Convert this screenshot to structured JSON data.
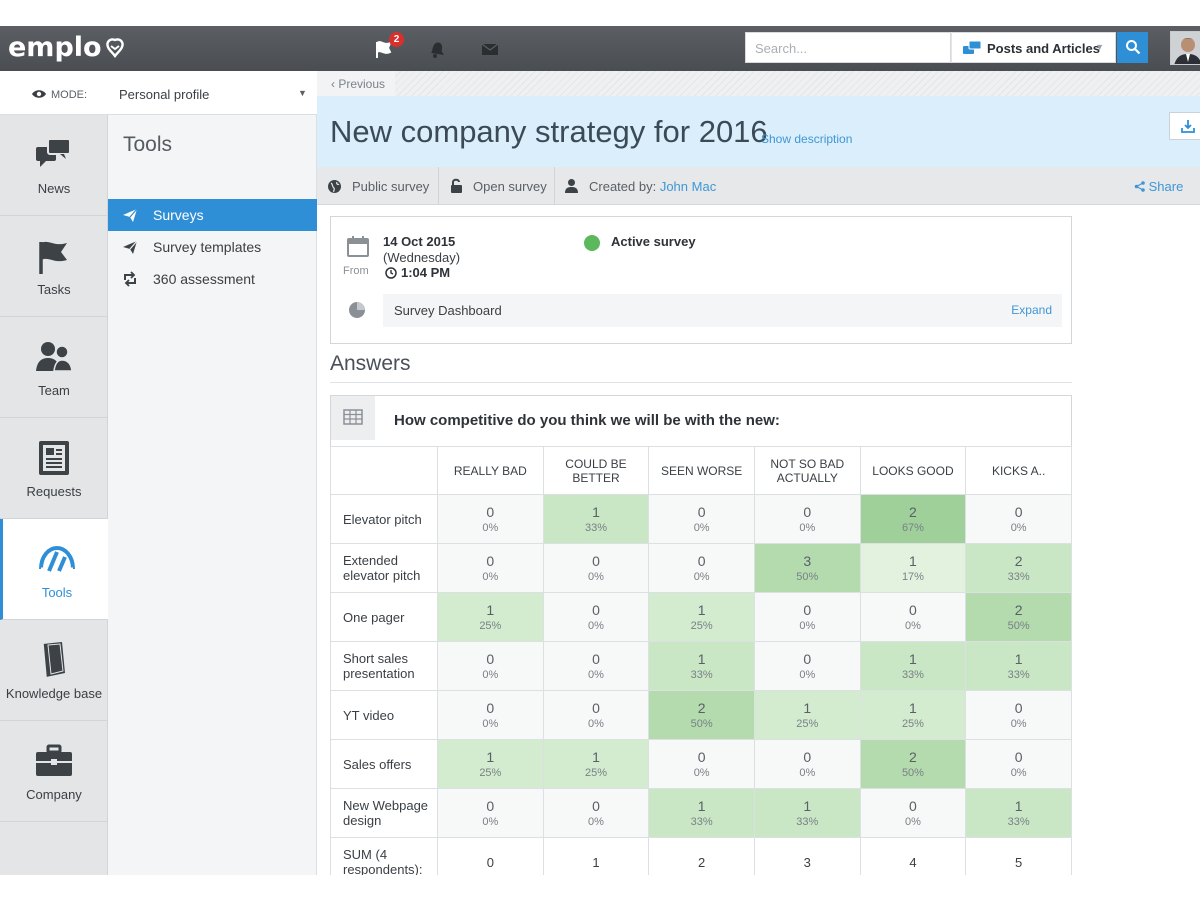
{
  "app": {
    "logo": "emplo"
  },
  "topbar": {
    "notification_count": "2",
    "search_placeholder": "Search...",
    "scope_label": "Posts and Articles"
  },
  "mode": {
    "label": "MODE:",
    "value": "Personal profile"
  },
  "rail": {
    "items": [
      {
        "label": "News",
        "icon": "news-icon"
      },
      {
        "label": "Tasks",
        "icon": "flag-icon"
      },
      {
        "label": "Team",
        "icon": "team-icon"
      },
      {
        "label": "Requests",
        "icon": "requests-icon"
      },
      {
        "label": "Tools",
        "icon": "gauge-icon"
      },
      {
        "label": "Knowledge base",
        "icon": "book-icon"
      },
      {
        "label": "Company",
        "icon": "briefcase-icon"
      }
    ]
  },
  "subnav": {
    "title": "Tools",
    "items": [
      {
        "label": "Surveys",
        "icon": "paper-plane-icon"
      },
      {
        "label": "Survey templates",
        "icon": "paper-plane-icon"
      },
      {
        "label": "360 assessment",
        "icon": "retweet-icon"
      }
    ]
  },
  "main": {
    "previous": "‹ Previous",
    "title": "New company strategy for 2016",
    "show_description": "Show description",
    "meta": {
      "visibility": "Public survey",
      "access": "Open survey",
      "created_by_label": "Created by:",
      "created_by_name": "John Mac",
      "share": "Share"
    },
    "info": {
      "date": "14 Oct 2015",
      "weekday": "(Wednesday)",
      "from_label": "From",
      "time": "1:04 PM",
      "status": "Active survey",
      "dashboard_label": "Survey Dashboard",
      "expand": "Expand"
    },
    "answers_title": "Answers",
    "question": "How competitive do you think we will be with the new:"
  },
  "table": {
    "columns": [
      "REALLY BAD",
      "COULD BE BETTER",
      "SEEN WORSE",
      "NOT SO BAD ACTUALLY",
      "LOOKS GOOD",
      "KICKS A.."
    ],
    "rows": [
      {
        "label": "Elevator pitch",
        "cells": [
          {
            "n": "0",
            "p": "0%"
          },
          {
            "n": "1",
            "p": "33%"
          },
          {
            "n": "0",
            "p": "0%"
          },
          {
            "n": "0",
            "p": "0%"
          },
          {
            "n": "2",
            "p": "67%"
          },
          {
            "n": "0",
            "p": "0%"
          }
        ]
      },
      {
        "label": "Extended elevator pitch",
        "cells": [
          {
            "n": "0",
            "p": "0%"
          },
          {
            "n": "0",
            "p": "0%"
          },
          {
            "n": "0",
            "p": "0%"
          },
          {
            "n": "3",
            "p": "50%"
          },
          {
            "n": "1",
            "p": "17%"
          },
          {
            "n": "2",
            "p": "33%"
          }
        ]
      },
      {
        "label": "One pager",
        "cells": [
          {
            "n": "1",
            "p": "25%"
          },
          {
            "n": "0",
            "p": "0%"
          },
          {
            "n": "1",
            "p": "25%"
          },
          {
            "n": "0",
            "p": "0%"
          },
          {
            "n": "0",
            "p": "0%"
          },
          {
            "n": "2",
            "p": "50%"
          }
        ]
      },
      {
        "label": "Short sales presentation",
        "cells": [
          {
            "n": "0",
            "p": "0%"
          },
          {
            "n": "0",
            "p": "0%"
          },
          {
            "n": "1",
            "p": "33%"
          },
          {
            "n": "0",
            "p": "0%"
          },
          {
            "n": "1",
            "p": "33%"
          },
          {
            "n": "1",
            "p": "33%"
          }
        ]
      },
      {
        "label": "YT video",
        "cells": [
          {
            "n": "0",
            "p": "0%"
          },
          {
            "n": "0",
            "p": "0%"
          },
          {
            "n": "2",
            "p": "50%"
          },
          {
            "n": "1",
            "p": "25%"
          },
          {
            "n": "1",
            "p": "25%"
          },
          {
            "n": "0",
            "p": "0%"
          }
        ]
      },
      {
        "label": "Sales offers",
        "cells": [
          {
            "n": "1",
            "p": "25%"
          },
          {
            "n": "1",
            "p": "25%"
          },
          {
            "n": "0",
            "p": "0%"
          },
          {
            "n": "0",
            "p": "0%"
          },
          {
            "n": "2",
            "p": "50%"
          },
          {
            "n": "0",
            "p": "0%"
          }
        ]
      },
      {
        "label": "New Webpage design",
        "cells": [
          {
            "n": "0",
            "p": "0%"
          },
          {
            "n": "0",
            "p": "0%"
          },
          {
            "n": "1",
            "p": "33%"
          },
          {
            "n": "1",
            "p": "33%"
          },
          {
            "n": "0",
            "p": "0%"
          },
          {
            "n": "1",
            "p": "33%"
          }
        ]
      }
    ],
    "sum_label": "SUM (4 respondents):",
    "sums": [
      "0",
      "1",
      "2",
      "3",
      "4",
      "5"
    ]
  },
  "colors": {
    "accent": "#2f8fd6",
    "active_green": "#5cb85c",
    "title_band": "#daeefb"
  }
}
